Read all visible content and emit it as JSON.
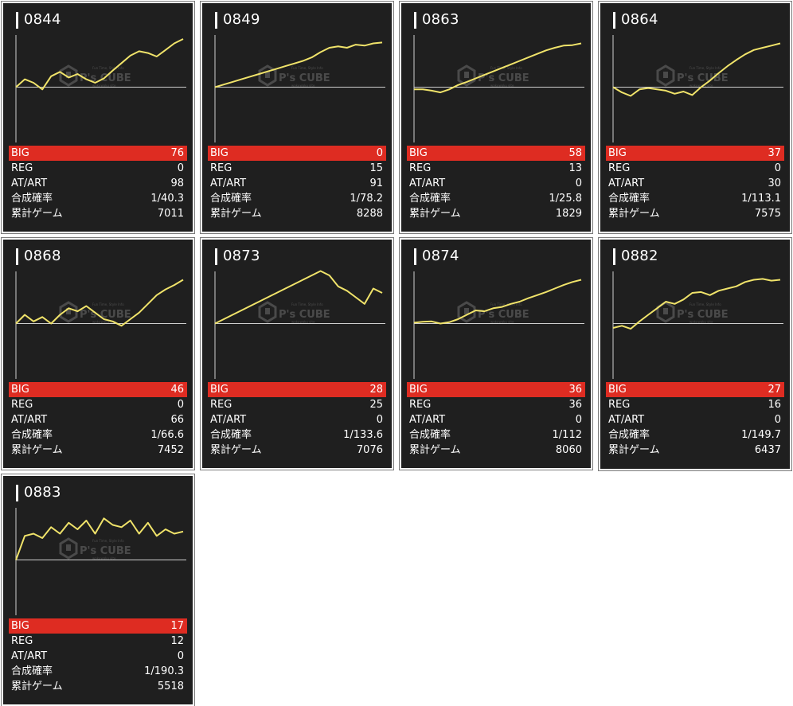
{
  "labels": {
    "big": "BIG",
    "reg": "REG",
    "at": "AT/ART",
    "rate": "合成確率",
    "games": "累計ゲーム"
  },
  "watermark": {
    "brand": "P's CUBE",
    "top_line": "Fun Time, Style Info",
    "bottom_line": "wakuwaku site"
  },
  "colors": {
    "panel_bg": "#1f1f1f",
    "line": "#f0e36a",
    "axis": "#cfcfcf",
    "big_row": "#de2c22",
    "text": "#ffffff",
    "border": "#7a7a7a"
  },
  "machines": [
    {
      "id": "0844",
      "big": "76",
      "reg": "0",
      "at": "98",
      "rate": "1/40.3",
      "games": "7011",
      "graph": [
        0,
        0.18,
        0.1,
        -0.05,
        0.25,
        0.35,
        0.22,
        0.3,
        0.18,
        0.1,
        0.2,
        0.38,
        0.55,
        0.72,
        0.82,
        0.78,
        0.7,
        0.85,
        1.0,
        1.1
      ]
    },
    {
      "id": "0849",
      "big": "0",
      "reg": "15",
      "at": "91",
      "rate": "1/78.2",
      "games": "8288",
      "graph": [
        0,
        0.06,
        0.12,
        0.18,
        0.24,
        0.3,
        0.36,
        0.42,
        0.48,
        0.54,
        0.6,
        0.68,
        0.8,
        0.9,
        0.93,
        0.9,
        0.97,
        0.95,
        1.0,
        1.02
      ]
    },
    {
      "id": "0863",
      "big": "58",
      "reg": "13",
      "at": "0",
      "rate": "1/25.8",
      "games": "1829",
      "graph": [
        -0.05,
        -0.05,
        -0.08,
        -0.12,
        -0.05,
        0.05,
        0.12,
        0.2,
        0.28,
        0.36,
        0.44,
        0.52,
        0.6,
        0.68,
        0.76,
        0.84,
        0.9,
        0.95,
        0.96,
        1.0
      ]
    },
    {
      "id": "0864",
      "big": "37",
      "reg": "0",
      "at": "30",
      "rate": "1/113.1",
      "games": "7575",
      "graph": [
        0,
        -0.12,
        -0.2,
        -0.05,
        -0.02,
        -0.05,
        -0.08,
        -0.15,
        -0.1,
        -0.18,
        0.0,
        0.15,
        0.32,
        0.48,
        0.62,
        0.75,
        0.85,
        0.9,
        0.95,
        1.0
      ]
    },
    {
      "id": "0868",
      "big": "46",
      "reg": "0",
      "at": "66",
      "rate": "1/66.6",
      "games": "7452",
      "graph": [
        0,
        0.2,
        0.05,
        0.15,
        0.0,
        0.2,
        0.35,
        0.28,
        0.4,
        0.25,
        0.1,
        0.05,
        -0.05,
        0.1,
        0.25,
        0.45,
        0.65,
        0.78,
        0.88,
        1.0
      ]
    },
    {
      "id": "0873",
      "big": "28",
      "reg": "25",
      "at": "0",
      "rate": "1/133.6",
      "games": "7076",
      "graph": [
        0,
        0.1,
        0.2,
        0.3,
        0.4,
        0.5,
        0.6,
        0.7,
        0.8,
        0.9,
        1.0,
        1.1,
        1.2,
        1.1,
        0.85,
        0.75,
        0.6,
        0.45,
        0.8,
        0.7
      ]
    },
    {
      "id": "0874",
      "big": "36",
      "reg": "36",
      "at": "0",
      "rate": "1/112",
      "games": "8060",
      "graph": [
        0.02,
        0.04,
        0.05,
        0.0,
        0.03,
        0.1,
        0.2,
        0.3,
        0.28,
        0.35,
        0.38,
        0.45,
        0.5,
        0.58,
        0.65,
        0.72,
        0.8,
        0.88,
        0.95,
        1.0
      ]
    },
    {
      "id": "0882",
      "big": "27",
      "reg": "16",
      "at": "0",
      "rate": "1/149.7",
      "games": "6437",
      "graph": [
        -0.1,
        -0.05,
        -0.12,
        0.05,
        0.2,
        0.35,
        0.5,
        0.45,
        0.55,
        0.7,
        0.72,
        0.65,
        0.75,
        0.8,
        0.85,
        0.95,
        1.0,
        1.02,
        0.98,
        1.0
      ]
    },
    {
      "id": "0883",
      "big": "17",
      "reg": "12",
      "at": "0",
      "rate": "1/190.3",
      "games": "5518",
      "graph": [
        0,
        0.55,
        0.6,
        0.5,
        0.75,
        0.6,
        0.85,
        0.7,
        0.9,
        0.6,
        0.95,
        0.8,
        0.75,
        0.9,
        0.6,
        0.85,
        0.55,
        0.7,
        0.6,
        0.65
      ]
    }
  ]
}
